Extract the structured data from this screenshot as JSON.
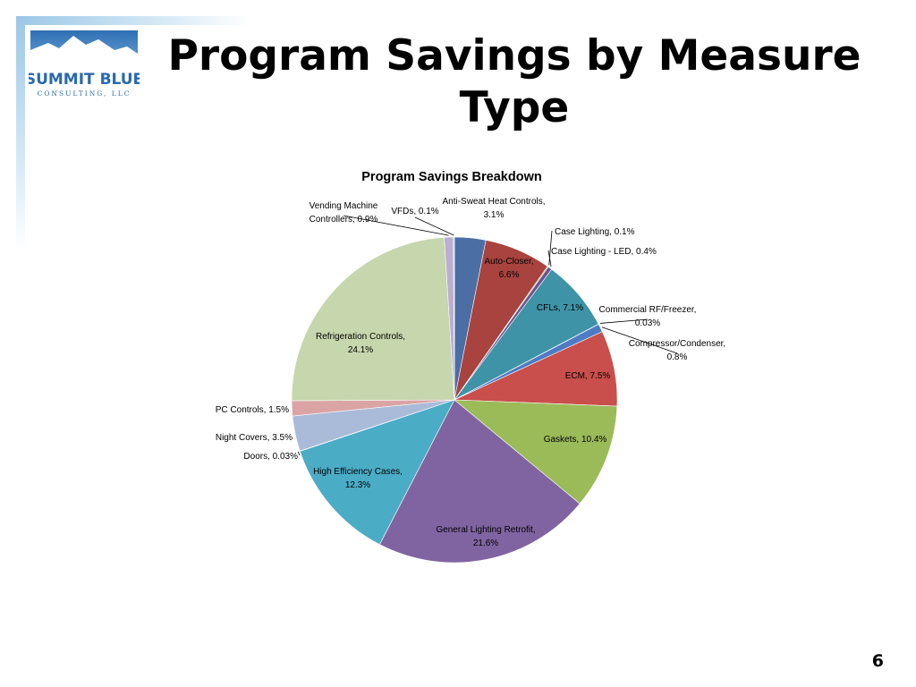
{
  "slide": {
    "title": "Program Savings by Measure Type",
    "page_number": "6"
  },
  "logo": {
    "name": "SUMMIT BLUE",
    "tagline": "CONSULTING, LLC"
  },
  "chart_data": {
    "type": "pie",
    "title": "Program Savings Breakdown",
    "slices": [
      {
        "label": "Anti-Sweat Heat Controls",
        "value": 3.1,
        "value_text": "3.1%",
        "color": "#4b6fa5"
      },
      {
        "label": "Auto-Closer",
        "value": 6.6,
        "value_text": "6.6%",
        "color": "#a9433f"
      },
      {
        "label": "Case Lighting",
        "value": 0.1,
        "value_text": "0.1%",
        "color": "#7e9a45"
      },
      {
        "label": "Case Lighting - LED",
        "value": 0.4,
        "value_text": "0.4%",
        "color": "#6b5590"
      },
      {
        "label": "CFLs",
        "value": 7.1,
        "value_text": "7.1%",
        "color": "#3f93a6"
      },
      {
        "label": "Commercial RF/Freezer",
        "value": 0.03,
        "value_text": "0.03%",
        "color": "#df8a3c"
      },
      {
        "label": "Compressor/Condenser",
        "value": 0.8,
        "value_text": "0.8%",
        "color": "#4d7cc4"
      },
      {
        "label": "ECM",
        "value": 7.5,
        "value_text": "7.5%",
        "color": "#c84f4b"
      },
      {
        "label": "Gaskets",
        "value": 10.4,
        "value_text": "10.4%",
        "color": "#9bbb59"
      },
      {
        "label": "General Lighting Retrofit",
        "value": 21.6,
        "value_text": "21.6%",
        "color": "#8064a2"
      },
      {
        "label": "High Efficiency Cases",
        "value": 12.3,
        "value_text": "12.3%",
        "color": "#4bacc6"
      },
      {
        "label": "Doors",
        "value": 0.03,
        "value_text": "0.03%",
        "color": "#f79646"
      },
      {
        "label": "Night Covers",
        "value": 3.5,
        "value_text": "3.5%",
        "color": "#aabbd9"
      },
      {
        "label": "PC Controls",
        "value": 1.5,
        "value_text": "1.5%",
        "color": "#d9a4a3"
      },
      {
        "label": "Refrigeration Controls",
        "value": 24.1,
        "value_text": "24.1%",
        "color": "#c6d6ad"
      },
      {
        "label": "Vending Machine Controllers",
        "value": 0.9,
        "value_text": "0.9%",
        "color": "#bcaed0"
      },
      {
        "label": "VFDs",
        "value": 0.1,
        "value_text": "0.1%",
        "color": "#a6d4e2"
      }
    ]
  }
}
